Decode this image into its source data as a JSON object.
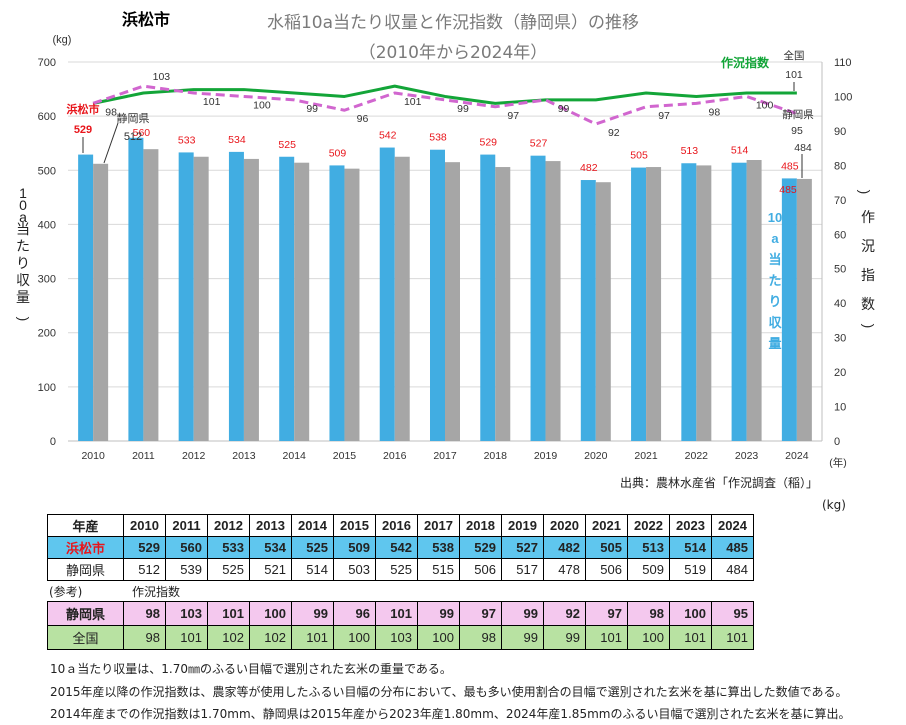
{
  "city_title": "浜松市",
  "chart_data": {
    "type": "bar+line",
    "title": "水稲10a当たり収量と作況指数（静岡県）の推移",
    "subtitle": "（2010年から2024年）",
    "categories": [
      "2010",
      "2011",
      "2012",
      "2013",
      "2014",
      "2015",
      "2016",
      "2017",
      "2018",
      "2019",
      "2020",
      "2021",
      "2022",
      "2023",
      "2024"
    ],
    "y_left": {
      "label": "10a当たり収量",
      "unit": "(kg)",
      "range": [
        0,
        700
      ],
      "ticks": [
        0,
        100,
        200,
        300,
        400,
        500,
        600,
        700
      ]
    },
    "y_right": {
      "label": "作況指数",
      "paren_open": "（",
      "paren_close": "）",
      "range": [
        0,
        110
      ],
      "ticks": [
        0,
        10,
        20,
        30,
        40,
        50,
        60,
        70,
        80,
        90,
        100,
        110
      ]
    },
    "x_unit": "(年)",
    "bars": [
      {
        "name": "浜松市",
        "color": "#41ade2",
        "values": [
          529,
          560,
          533,
          534,
          525,
          509,
          542,
          538,
          529,
          527,
          482,
          505,
          513,
          514,
          485
        ]
      },
      {
        "name": "静岡県",
        "color": "#a6a6a6",
        "values": [
          512,
          539,
          525,
          521,
          514,
          503,
          525,
          515,
          506,
          517,
          478,
          506,
          509,
          519,
          484
        ]
      }
    ],
    "lines": [
      {
        "name": "全国",
        "color": "#13a538",
        "style": "solid",
        "values": [
          98,
          101,
          102,
          102,
          101,
          100,
          103,
          100,
          98,
          99,
          99,
          101,
          100,
          101,
          101
        ]
      },
      {
        "name": "静岡県",
        "color": "#d166cf",
        "style": "dashed",
        "values": [
          98,
          103,
          101,
          100,
          99,
          96,
          101,
          99,
          97,
          99,
          92,
          97,
          98,
          100,
          95
        ]
      }
    ],
    "annotations": {
      "city_label": "浜松市",
      "city_first_value": "529",
      "pref_label": "静岡県",
      "pref_first_value": "512",
      "natl_label": "全国",
      "natl_last_value": "101",
      "index_legend": "作況指数",
      "pref_line_end_label": "静岡県",
      "pref_line_last_value": "95",
      "pref_bar_last_value": "484",
      "bar_legend": "10a当たり収量"
    }
  },
  "source": "出典：農林水産省「作況調査（稲）」",
  "table_unit": "(kg)",
  "main_table": {
    "header_label": "年産",
    "years": [
      "2010",
      "2011",
      "2012",
      "2013",
      "2014",
      "2015",
      "2016",
      "2017",
      "2018",
      "2019",
      "2020",
      "2021",
      "2022",
      "2023",
      "2024"
    ],
    "rows": [
      {
        "label": "浜松市",
        "values": [
          "529",
          "560",
          "533",
          "534",
          "525",
          "509",
          "542",
          "538",
          "529",
          "527",
          "482",
          "505",
          "513",
          "514",
          "485"
        ]
      },
      {
        "label": "静岡県",
        "values": [
          "512",
          "539",
          "525",
          "521",
          "514",
          "503",
          "525",
          "515",
          "506",
          "517",
          "478",
          "506",
          "509",
          "519",
          "484"
        ]
      }
    ]
  },
  "reference": {
    "label": "(参考)",
    "sublabel": "作況指数",
    "rows": [
      {
        "label": "静岡県",
        "values": [
          "98",
          "103",
          "101",
          "100",
          "99",
          "96",
          "101",
          "99",
          "97",
          "99",
          "92",
          "97",
          "98",
          "100",
          "95"
        ]
      },
      {
        "label": "全国",
        "values": [
          "98",
          "101",
          "102",
          "102",
          "101",
          "100",
          "103",
          "100",
          "98",
          "99",
          "99",
          "101",
          "100",
          "101",
          "101"
        ]
      }
    ]
  },
  "notes": [
    "10ａ当たり収量は、1.70㎜のふるい目幅で選別された玄米の重量である。",
    "2015年産以降の作況指数は、農家等が使用したふるい目幅の分布において、最も多い使用割合の目幅で選別された玄米を基に算出した数値である。",
    "2014年産までの作況指数は1.70mm、静岡県は2015年産から2023年産1.80mm、2024年産1.85mmのふるい目幅で選別された玄米を基に算出。"
  ]
}
